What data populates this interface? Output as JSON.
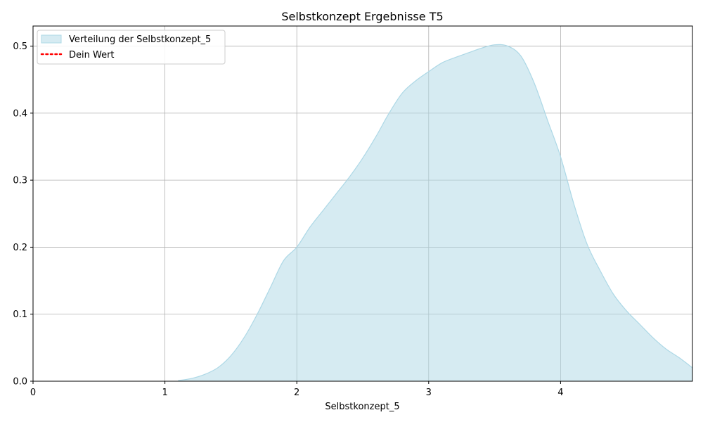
{
  "chart_data": {
    "type": "area",
    "title": "Selbstkonzept Ergebnisse T5",
    "xlabel": "Selbstkonzept_5",
    "ylabel": "",
    "xlim": [
      0,
      5
    ],
    "ylim": [
      0,
      0.53
    ],
    "x_ticks": [
      0,
      1,
      2,
      3,
      4
    ],
    "x_tick_labels": [
      "0",
      "1",
      "2",
      "3",
      "4"
    ],
    "y_ticks": [
      0.0,
      0.1,
      0.2,
      0.3,
      0.4,
      0.5
    ],
    "y_tick_labels": [
      "0.0",
      "0.1",
      "0.2",
      "0.3",
      "0.4",
      "0.5"
    ],
    "grid": true,
    "legend_position": "top-left",
    "series": [
      {
        "name": "Verteilung der Selbstkonzept_5",
        "kind": "kde-fill",
        "color": "#add8e6",
        "x": [
          1.1,
          1.2,
          1.3,
          1.4,
          1.5,
          1.6,
          1.7,
          1.8,
          1.9,
          2.0,
          2.1,
          2.2,
          2.3,
          2.4,
          2.5,
          2.6,
          2.7,
          2.8,
          2.9,
          3.0,
          3.1,
          3.2,
          3.3,
          3.4,
          3.5,
          3.6,
          3.7,
          3.8,
          3.9,
          4.0,
          4.1,
          4.2,
          4.3,
          4.4,
          4.5,
          4.6,
          4.7,
          4.8,
          4.9,
          5.0
        ],
        "y": [
          0.001,
          0.004,
          0.01,
          0.02,
          0.038,
          0.065,
          0.1,
          0.14,
          0.18,
          0.2,
          0.23,
          0.255,
          0.28,
          0.305,
          0.333,
          0.365,
          0.4,
          0.43,
          0.448,
          0.462,
          0.475,
          0.483,
          0.49,
          0.497,
          0.502,
          0.5,
          0.485,
          0.445,
          0.39,
          0.335,
          0.265,
          0.205,
          0.165,
          0.13,
          0.105,
          0.085,
          0.065,
          0.048,
          0.035,
          0.02
        ]
      },
      {
        "name": "Dein Wert",
        "kind": "vline",
        "color": "#ff0000",
        "linestyle": "dotted"
      }
    ]
  }
}
